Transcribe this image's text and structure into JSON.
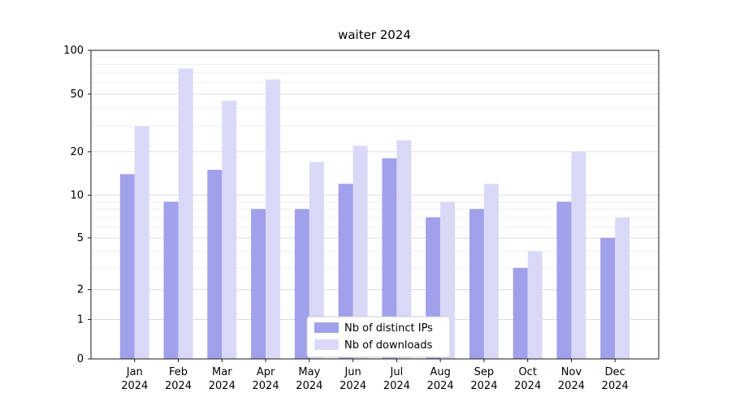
{
  "chart_data": {
    "type": "bar",
    "title": "waiter 2024",
    "categories": [
      "Jan\n2024",
      "Feb\n2024",
      "Mar\n2024",
      "Apr\n2024",
      "May\n2024",
      "Jun\n2024",
      "Jul\n2024",
      "Aug\n2024",
      "Sep\n2024",
      "Oct\n2024",
      "Nov\n2024",
      "Dec\n2024"
    ],
    "series": [
      {
        "name": "Nb of distinct IPs",
        "color": "#a0a0eb",
        "values": [
          14,
          9,
          15,
          8,
          8,
          12,
          18,
          7,
          8,
          3,
          9,
          5
        ]
      },
      {
        "name": "Nb of downloads",
        "color": "#d9d9f7",
        "values": [
          30,
          75,
          45,
          63,
          17,
          22,
          24,
          9,
          12,
          4,
          20,
          7
        ]
      }
    ],
    "xlabel": "",
    "ylabel": "",
    "yscale": "asinh (log-like with 0)",
    "yticks": [
      0,
      1,
      2,
      5,
      10,
      20,
      50,
      100
    ],
    "minor_gridlines": [
      3,
      4,
      6,
      7,
      8,
      9,
      30,
      40,
      60,
      70,
      80,
      90
    ],
    "ylim": [
      0,
      100
    ],
    "grid": "horizontal",
    "legend_position": "bottom-center"
  }
}
